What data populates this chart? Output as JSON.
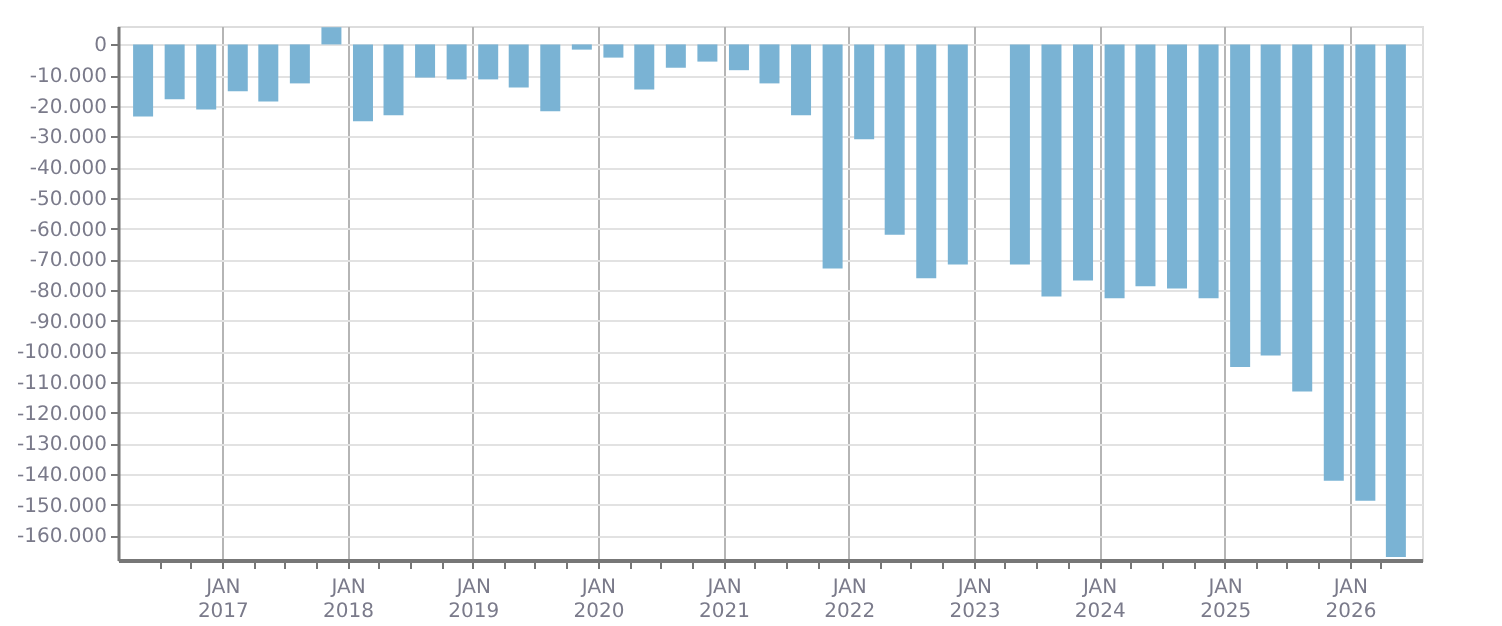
{
  "chart_data": {
    "type": "bar",
    "color": "#7ab3d4",
    "grid": true,
    "x": [
      "2016-05-15",
      "2016-08-15",
      "2016-11-15",
      "2017-02-15",
      "2017-05-15",
      "2017-08-15",
      "2017-11-15",
      "2018-02-15",
      "2018-05-15",
      "2018-08-15",
      "2018-11-15",
      "2019-02-15",
      "2019-05-15",
      "2019-08-15",
      "2019-11-15",
      "2020-02-15",
      "2020-05-15",
      "2020-08-15",
      "2020-11-15",
      "2021-02-15",
      "2021-05-15",
      "2021-08-15",
      "2021-11-15",
      "2022-02-15",
      "2022-05-15",
      "2022-08-15",
      "2022-11-15",
      "2023-02-15",
      "2023-05-15",
      "2023-08-15",
      "2023-11-15",
      "2024-02-15",
      "2024-05-15",
      "2024-08-15",
      "2024-11-15",
      "2025-02-15",
      "2025-05-15",
      "2025-08-15",
      "2025-11-15",
      "2026-02-15",
      "2026-05-15"
    ],
    "values": [
      -23500,
      -17900,
      -21200,
      -15300,
      -18600,
      -12700,
      5600,
      -25000,
      -23100,
      -10800,
      -11400,
      -11400,
      -14000,
      -21800,
      -1700,
      -4300,
      -14700,
      -7600,
      -5600,
      -8400,
      -12700,
      -23100,
      -73000,
      -30900,
      -62000,
      -76200,
      -71700,
      null,
      -71700,
      -82100,
      -76900,
      -82700,
      -78800,
      -79500,
      -82700,
      -105100,
      -101400,
      -113100,
      -142200,
      -148700,
      -167000
    ],
    "xlim": [
      "2016-04-01",
      "2026-07-01"
    ],
    "xticks": [
      {
        "value": "2016-07-01",
        "label": null
      },
      {
        "value": "2016-10-01",
        "label": null
      },
      {
        "value": "2017-01-01",
        "label": "JAN\n2017"
      },
      {
        "value": "2017-04-01",
        "label": null
      },
      {
        "value": "2017-07-01",
        "label": null
      },
      {
        "value": "2017-10-01",
        "label": null
      },
      {
        "value": "2018-01-01",
        "label": "JAN\n2018"
      },
      {
        "value": "2018-04-01",
        "label": null
      },
      {
        "value": "2018-07-01",
        "label": null
      },
      {
        "value": "2018-10-01",
        "label": null
      },
      {
        "value": "2019-01-01",
        "label": "JAN\n2019"
      },
      {
        "value": "2019-04-01",
        "label": null
      },
      {
        "value": "2019-07-01",
        "label": null
      },
      {
        "value": "2019-10-01",
        "label": null
      },
      {
        "value": "2020-01-01",
        "label": "JAN\n2020"
      },
      {
        "value": "2020-04-01",
        "label": null
      },
      {
        "value": "2020-07-01",
        "label": null
      },
      {
        "value": "2020-10-01",
        "label": null
      },
      {
        "value": "2021-01-01",
        "label": "JAN\n2021"
      },
      {
        "value": "2021-04-01",
        "label": null
      },
      {
        "value": "2021-07-01",
        "label": null
      },
      {
        "value": "2021-10-01",
        "label": null
      },
      {
        "value": "2022-01-01",
        "label": "JAN\n2022"
      },
      {
        "value": "2022-04-01",
        "label": null
      },
      {
        "value": "2022-07-01",
        "label": null
      },
      {
        "value": "2022-10-01",
        "label": null
      },
      {
        "value": "2023-01-01",
        "label": "JAN\n2023"
      },
      {
        "value": "2023-04-01",
        "label": null
      },
      {
        "value": "2023-07-01",
        "label": null
      },
      {
        "value": "2023-10-01",
        "label": null
      },
      {
        "value": "2024-01-01",
        "label": "JAN\n2024"
      },
      {
        "value": "2024-04-01",
        "label": null
      },
      {
        "value": "2024-07-01",
        "label": null
      },
      {
        "value": "2024-10-01",
        "label": null
      },
      {
        "value": "2025-01-01",
        "label": "JAN\n2025"
      },
      {
        "value": "2025-04-01",
        "label": null
      },
      {
        "value": "2025-07-01",
        "label": null
      },
      {
        "value": "2025-10-01",
        "label": null
      },
      {
        "value": "2026-01-01",
        "label": "JAN\n2026"
      },
      {
        "value": "2026-04-01",
        "label": null
      }
    ],
    "ylim": [
      -168000,
      6000
    ],
    "yticks": [
      0,
      {
        "value": -10000,
        "label": "-10.000"
      },
      {
        "value": -20000,
        "label": "-20.000"
      },
      {
        "value": -30000,
        "label": "-30.000"
      },
      {
        "value": -40000,
        "label": "-40.000"
      },
      {
        "value": -50000,
        "label": "-50.000"
      },
      {
        "value": -60000,
        "label": "-60.000"
      },
      {
        "value": -70000,
        "label": "-70.000"
      },
      {
        "value": -80000,
        "label": "-80.000"
      },
      {
        "value": -90000,
        "label": "-90.000"
      },
      {
        "value": -100000,
        "label": "-100.000"
      },
      {
        "value": -110000,
        "label": "-110.000"
      },
      {
        "value": -120000,
        "label": "-120.000"
      },
      {
        "value": -130000,
        "label": "-130.000"
      },
      {
        "value": -140000,
        "label": "-140.000"
      },
      {
        "value": -150000,
        "label": "-150.000"
      },
      {
        "value": -160000,
        "label": "-160.000"
      }
    ]
  }
}
